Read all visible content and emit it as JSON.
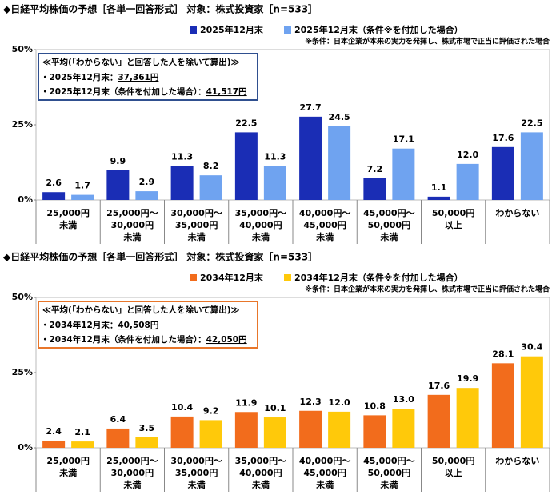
{
  "chart_data": [
    {
      "type": "bar",
      "title": "◆日経平均株価の予想［各単一回答形式］ 対象：株式投資家［n=533］",
      "note": "※条件：日本企業が本来の実力を発揮し、株式市場で正当に評価された場合",
      "average_box": {
        "heading": "≪平均(「わからない」と回答した人を除いて算出)≫",
        "items": [
          {
            "label": "・2025年12月末：",
            "value": "37,361円"
          },
          {
            "label": "・2025年12月末（条件を付加した場合）：",
            "value": "41,517円"
          }
        ],
        "color": "#2f4f8f"
      },
      "categories": [
        [
          "25,000円",
          "未満"
        ],
        [
          "25,000円～",
          "30,000円",
          "未満"
        ],
        [
          "30,000円～",
          "35,000円",
          "未満"
        ],
        [
          "35,000円～",
          "40,000円",
          "未満"
        ],
        [
          "40,000円～",
          "45,000円",
          "未満"
        ],
        [
          "45,000円～",
          "50,000円",
          "未満"
        ],
        [
          "50,000円",
          "以上"
        ],
        [
          "わからない"
        ]
      ],
      "series": [
        {
          "name": "2025年12月末",
          "color": "#1a2db5",
          "values": [
            2.6,
            9.9,
            11.3,
            22.5,
            27.7,
            7.2,
            1.1,
            17.6
          ],
          "value_labels": [
            "2.6",
            "9.9",
            "11.3",
            "22.5",
            "27.7",
            "7.2",
            "1.1",
            "17.6"
          ]
        },
        {
          "name": "2025年12月末（条件※を付加した場合）",
          "color": "#6fa3f0",
          "values": [
            1.7,
            2.9,
            8.2,
            11.3,
            24.5,
            17.1,
            12.0,
            22.5
          ],
          "value_labels": [
            "1.7",
            "2.9",
            "8.2",
            "11.3",
            "24.5",
            "17.1",
            "12.0",
            "22.5"
          ]
        }
      ],
      "ylim": [
        0,
        50
      ],
      "yticks": [
        {
          "value": 0,
          "label": "0%"
        },
        {
          "value": 25,
          "label": "25%"
        },
        {
          "value": 50,
          "label": "50%"
        }
      ],
      "grid": false
    },
    {
      "type": "bar",
      "title": "◆日経平均株価の予想［各単一回答形式］ 対象：株式投資家［n=533］",
      "note": "※条件：日本企業が本来の実力を発揮し、株式市場で正当に評価された場合",
      "average_box": {
        "heading": "≪平均(「わからない」と回答した人を除いて算出)≫",
        "items": [
          {
            "label": "・2034年12月末：",
            "value": "40,508円"
          },
          {
            "label": "・2034年12月末（条件を付加した場合）：",
            "value": "42,050円"
          }
        ],
        "color": "#e8762a"
      },
      "categories": [
        [
          "25,000円",
          "未満"
        ],
        [
          "25,000円～",
          "30,000円",
          "未満"
        ],
        [
          "30,000円～",
          "35,000円",
          "未満"
        ],
        [
          "35,000円～",
          "40,000円",
          "未満"
        ],
        [
          "40,000円～",
          "45,000円",
          "未満"
        ],
        [
          "45,000円～",
          "50,000円",
          "未満"
        ],
        [
          "50,000円",
          "以上"
        ],
        [
          "わからない"
        ]
      ],
      "series": [
        {
          "name": "2034年12月末",
          "color": "#f26c1c",
          "values": [
            2.4,
            6.4,
            10.4,
            11.9,
            12.3,
            10.8,
            17.6,
            28.1
          ],
          "value_labels": [
            "2.4",
            "6.4",
            "10.4",
            "11.9",
            "12.3",
            "10.8",
            "17.6",
            "28.1"
          ]
        },
        {
          "name": "2034年12月末（条件※を付加した場合）",
          "color": "#ffc90a",
          "values": [
            2.1,
            3.5,
            9.2,
            10.1,
            12.0,
            13.0,
            19.9,
            30.4
          ],
          "value_labels": [
            "2.1",
            "3.5",
            "9.2",
            "10.1",
            "12.0",
            "13.0",
            "19.9",
            "30.4"
          ]
        }
      ],
      "ylim": [
        0,
        50
      ],
      "yticks": [
        {
          "value": 0,
          "label": "0%"
        },
        {
          "value": 25,
          "label": "25%"
        },
        {
          "value": 50,
          "label": "50%"
        }
      ],
      "grid": false
    }
  ]
}
